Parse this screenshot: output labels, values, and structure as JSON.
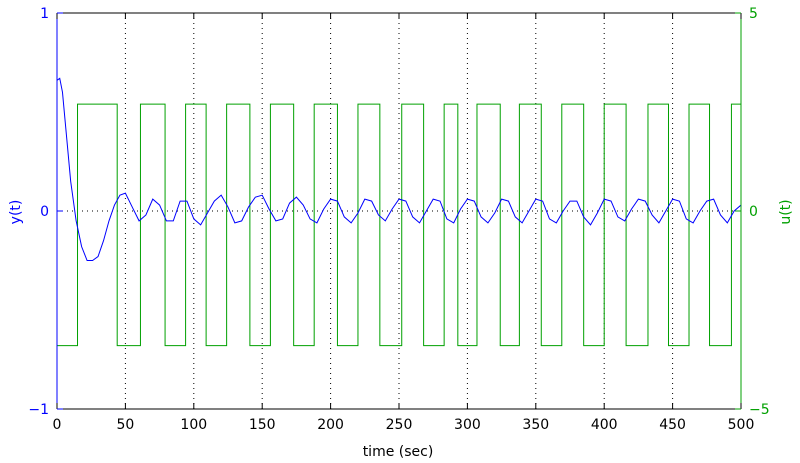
{
  "chart_data": {
    "type": "line",
    "title": "",
    "xlabel": "time (sec)",
    "ylabel_left": "y(t)",
    "ylabel_right": "u(t)",
    "xlim": [
      0,
      500
    ],
    "ylim_left": [
      -1,
      1
    ],
    "ylim_right": [
      -5,
      5
    ],
    "x_ticks": [
      0,
      50,
      100,
      150,
      200,
      250,
      300,
      350,
      400,
      450,
      500
    ],
    "y_left_ticks": [
      -1,
      0,
      1
    ],
    "y_left_tick_labels": [
      "−1",
      "0",
      "1"
    ],
    "y_right_ticks": [
      -5,
      0,
      5
    ],
    "y_right_tick_labels": [
      "−5",
      "0",
      "5"
    ],
    "grid": "dotted at x ticks and y=0",
    "colors": {
      "y": "#0000ff",
      "u": "#00a000"
    },
    "series": [
      {
        "axis": "left",
        "color": "#0000ff",
        "kind": "line",
        "x": [
          0,
          2,
          4,
          6,
          8,
          10,
          14,
          18,
          22,
          26,
          30,
          34,
          38,
          42,
          46,
          50,
          55,
          60,
          65,
          70,
          75,
          80,
          85,
          90,
          95,
          100,
          105,
          110,
          115,
          120,
          125,
          130,
          135,
          140,
          145,
          150,
          155,
          160,
          165,
          170,
          175,
          180,
          185,
          190,
          195,
          200,
          205,
          210,
          215,
          220,
          225,
          230,
          235,
          240,
          245,
          250,
          255,
          260,
          265,
          270,
          275,
          280,
          285,
          290,
          295,
          300,
          305,
          310,
          315,
          320,
          325,
          330,
          335,
          340,
          345,
          350,
          355,
          360,
          365,
          370,
          375,
          380,
          385,
          390,
          395,
          400,
          405,
          410,
          415,
          420,
          425,
          430,
          435,
          440,
          445,
          450,
          455,
          460,
          465,
          470,
          475,
          480,
          485,
          490,
          495,
          500
        ],
        "y": [
          0.66,
          0.67,
          0.6,
          0.45,
          0.3,
          0.15,
          -0.05,
          -0.18,
          -0.25,
          -0.25,
          -0.23,
          -0.15,
          -0.05,
          0.03,
          0.08,
          0.09,
          0.02,
          -0.05,
          -0.02,
          0.06,
          0.03,
          -0.05,
          -0.05,
          0.05,
          0.05,
          -0.04,
          -0.07,
          -0.01,
          0.05,
          0.08,
          0.02,
          -0.06,
          -0.05,
          0.02,
          0.07,
          0.08,
          0.01,
          -0.05,
          -0.04,
          0.04,
          0.07,
          0.03,
          -0.04,
          -0.06,
          0.01,
          0.06,
          0.05,
          -0.03,
          -0.06,
          -0.01,
          0.06,
          0.05,
          -0.02,
          -0.05,
          0.01,
          0.06,
          0.05,
          -0.03,
          -0.06,
          0.0,
          0.06,
          0.05,
          -0.04,
          -0.06,
          0.01,
          0.06,
          0.05,
          -0.03,
          -0.06,
          -0.01,
          0.06,
          0.05,
          -0.03,
          -0.06,
          0.0,
          0.06,
          0.05,
          -0.04,
          -0.06,
          0.0,
          0.05,
          0.05,
          -0.03,
          -0.07,
          -0.01,
          0.06,
          0.05,
          -0.03,
          -0.05,
          0.01,
          0.06,
          0.05,
          -0.02,
          -0.06,
          0.0,
          0.06,
          0.05,
          -0.04,
          -0.06,
          0.0,
          0.05,
          0.06,
          -0.02,
          -0.06,
          0.0,
          0.03
        ]
      },
      {
        "axis": "right",
        "color": "#00a000",
        "kind": "step",
        "high": 2.7,
        "low": -3.4,
        "initial": -3.4,
        "x_end": 500,
        "switch_times": [
          15,
          44,
          61,
          79,
          94,
          109,
          124,
          141,
          156,
          173,
          188,
          205,
          220,
          236,
          252,
          268,
          283,
          293,
          307,
          324,
          338,
          354,
          369,
          385,
          400,
          416,
          432,
          447,
          462,
          477,
          493
        ]
      }
    ]
  }
}
